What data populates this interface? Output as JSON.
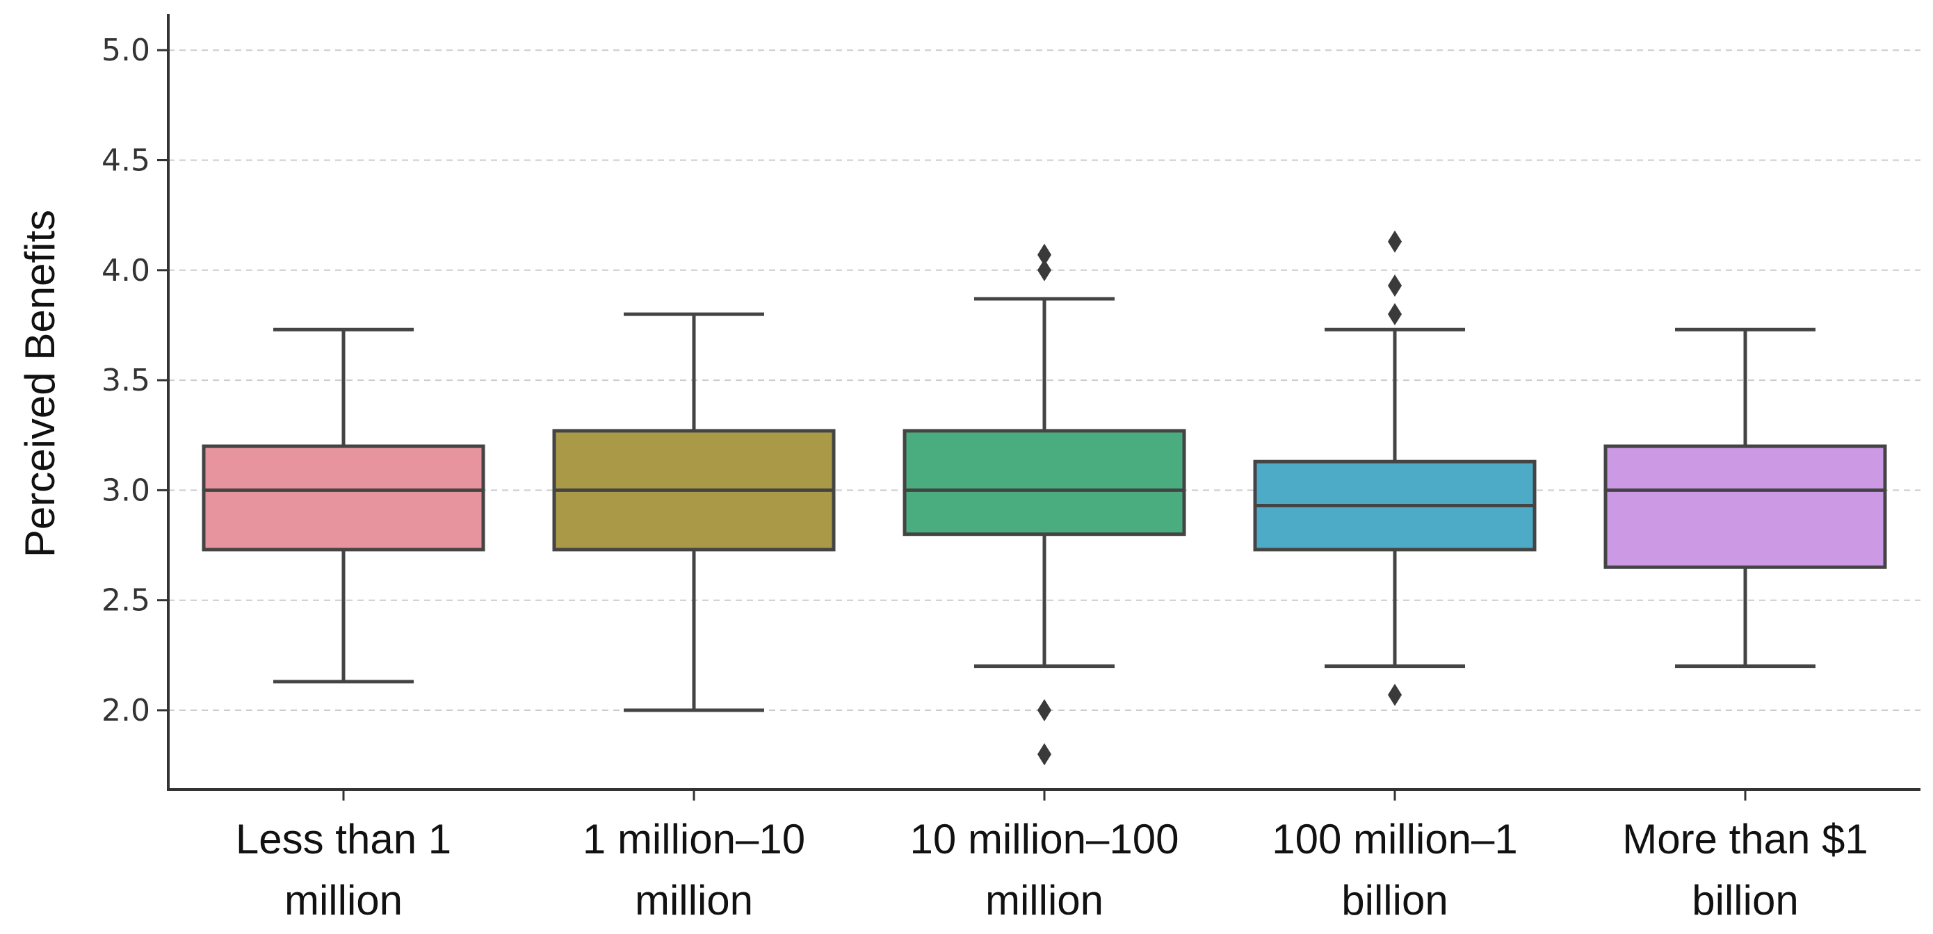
{
  "chart_data": {
    "type": "box",
    "title": "",
    "xlabel": "",
    "ylabel": "Perceived Benefits",
    "ylim": [
      1.65,
      5.17
    ],
    "yticks": [
      2.0,
      2.5,
      3.0,
      3.5,
      4.0,
      4.5,
      5.0
    ],
    "ytick_labels": [
      "2.0",
      "2.5",
      "3.0",
      "3.5",
      "4.0",
      "4.5",
      "5.0"
    ],
    "grid": "horizontal dashed",
    "categories": [
      "Less than 1 million",
      "1 million–10 million",
      "10 million–100 million",
      "100 million–1 billion",
      "More than $1 billion"
    ],
    "category_lines": [
      [
        "Less than 1",
        "million"
      ],
      [
        "1 million–10",
        "million"
      ],
      [
        "10 million–100",
        "million"
      ],
      [
        "100 million–1",
        "billion"
      ],
      [
        "More than $1",
        "billion"
      ]
    ],
    "boxes": [
      {
        "name": "Less than 1 million",
        "whisker_low": 2.13,
        "q1": 2.73,
        "median": 3.0,
        "q3": 3.2,
        "whisker_high": 3.73,
        "outliers": [],
        "color": "#e8949f"
      },
      {
        "name": "1 million–10 million",
        "whisker_low": 2.0,
        "q1": 2.73,
        "median": 3.0,
        "q3": 3.27,
        "whisker_high": 3.8,
        "outliers": [],
        "color": "#aa9a47"
      },
      {
        "name": "10 million–100 million",
        "whisker_low": 2.2,
        "q1": 2.8,
        "median": 3.0,
        "q3": 3.27,
        "whisker_high": 3.87,
        "outliers": [
          1.8,
          2.0,
          4.0,
          4.07
        ],
        "color": "#4aad7f"
      },
      {
        "name": "100 million–1 billion",
        "whisker_low": 2.2,
        "q1": 2.73,
        "median": 2.93,
        "q3": 3.13,
        "whisker_high": 3.73,
        "outliers": [
          2.07,
          3.8,
          3.93,
          4.13
        ],
        "color": "#4eabc8"
      },
      {
        "name": "More than $1 billion",
        "whisker_low": 2.2,
        "q1": 2.65,
        "median": 3.0,
        "q3": 3.2,
        "whisker_high": 3.73,
        "outliers": [],
        "color": "#cc99e4"
      }
    ],
    "line_color": "#444444",
    "grid_color": "#cccccc"
  }
}
